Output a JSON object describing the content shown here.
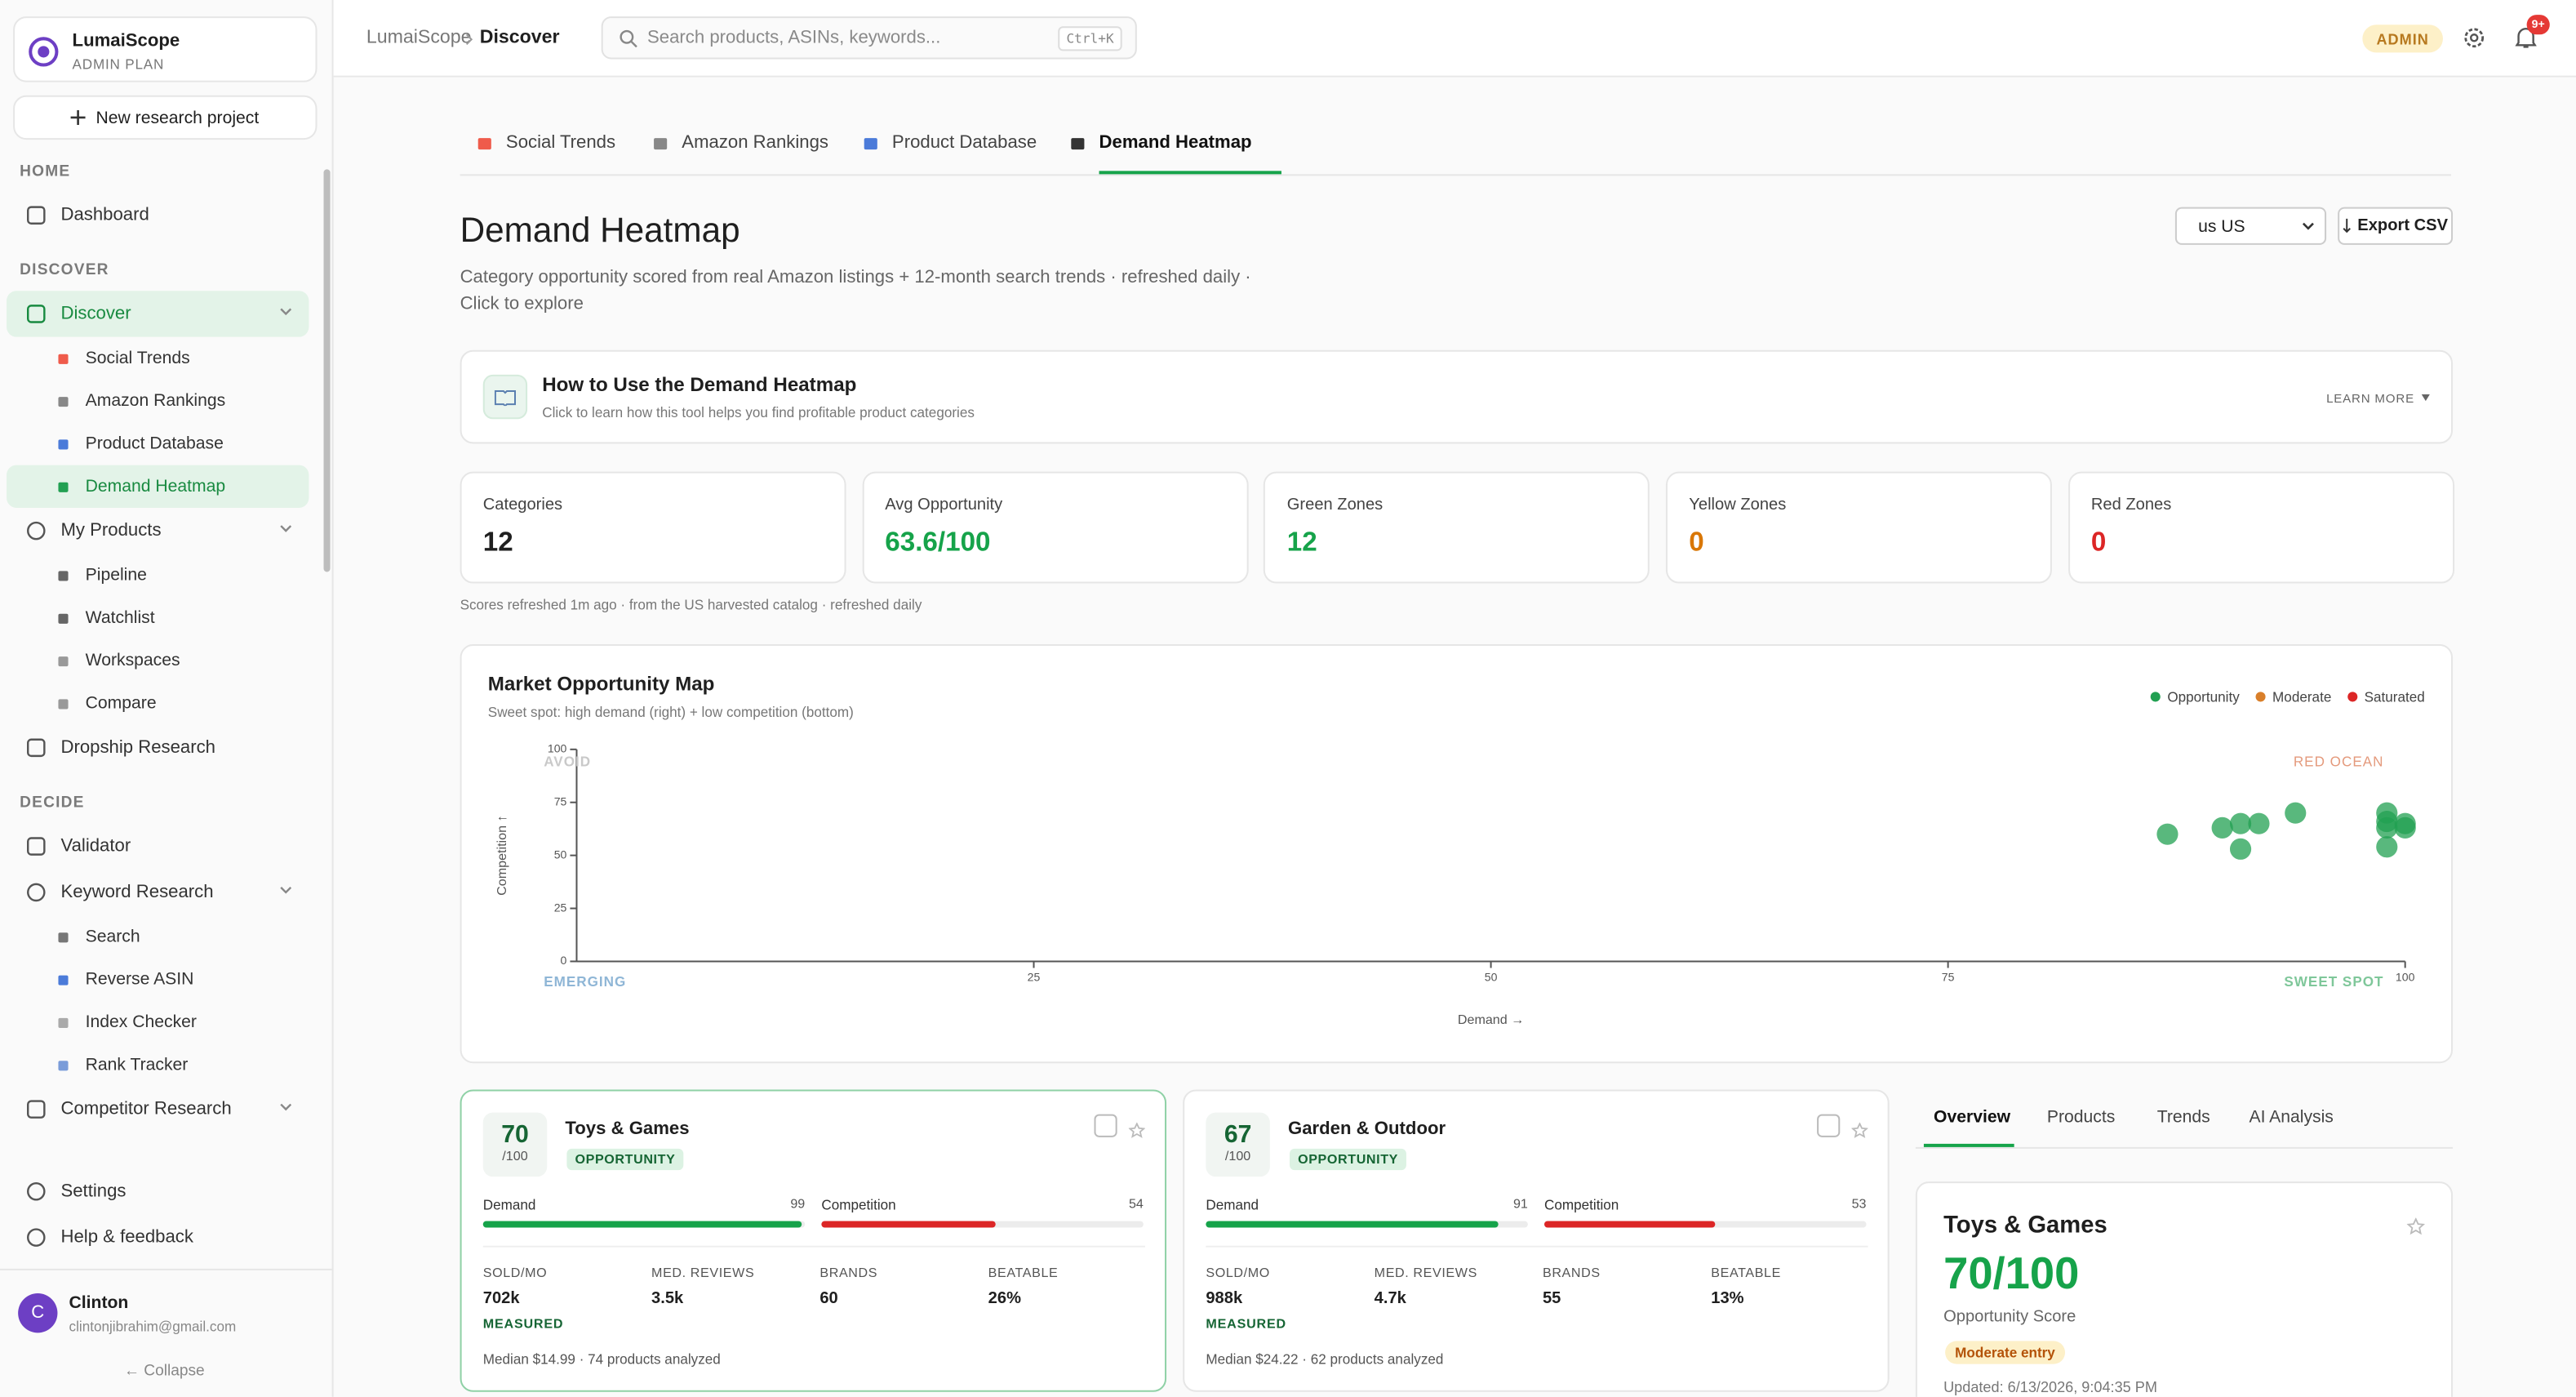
{
  "sidebar": {
    "brand": "LumaiScope",
    "plan": "ADMIN PLAN",
    "new_project": "New research project",
    "sections": [
      {
        "heading": "HOME",
        "items": [
          {
            "label": "Dashboard"
          }
        ]
      },
      {
        "heading": "DISCOVER",
        "items": [
          {
            "label": "Discover",
            "active": true,
            "children": [
              {
                "label": "Social Trends",
                "color": "#ef5b4b"
              },
              {
                "label": "Amazon Rankings",
                "color": "#888888"
              },
              {
                "label": "Product Database",
                "color": "#4b7bd9"
              },
              {
                "label": "Demand Heatmap",
                "color": "#22a052",
                "active": true
              }
            ]
          },
          {
            "label": "My Products",
            "children": [
              {
                "label": "Pipeline",
                "color": "#666666"
              },
              {
                "label": "Watchlist",
                "color": "#666666"
              },
              {
                "label": "Workspaces",
                "color": "#999999"
              },
              {
                "label": "Compare",
                "color": "#999999"
              }
            ]
          },
          {
            "label": "Dropship Research"
          }
        ]
      },
      {
        "heading": "DECIDE",
        "items": [
          {
            "label": "Validator"
          },
          {
            "label": "Keyword Research",
            "children": [
              {
                "label": "Search",
                "color": "#777777"
              },
              {
                "label": "Reverse ASIN",
                "color": "#4b7bd9"
              },
              {
                "label": "Index Checker",
                "color": "#aaaaaa"
              },
              {
                "label": "Rank Tracker",
                "color": "#7a9cd9"
              }
            ]
          },
          {
            "label": "Competitor Research",
            "children": []
          }
        ]
      }
    ],
    "footer": [
      "Settings",
      "Help & feedback"
    ],
    "user": {
      "initial": "C",
      "name": "Clinton",
      "email": "clintonjibrahim@gmail.com"
    },
    "collapse": "← Collapse"
  },
  "topbar": {
    "breadcrumb": [
      "LumaiScope",
      "Discover"
    ],
    "search_placeholder": "Search products, ASINs, keywords...",
    "shortcut": "Ctrl+K",
    "role": "ADMIN",
    "notifications": "9+"
  },
  "tabs": [
    {
      "label": "Social Trends",
      "color": "#ef5b4b"
    },
    {
      "label": "Amazon Rankings",
      "color": "#888888"
    },
    {
      "label": "Product Database",
      "color": "#4b7bd9"
    },
    {
      "label": "Demand Heatmap",
      "color": "#333333",
      "active": true
    }
  ],
  "page": {
    "title": "Demand Heatmap",
    "subtitle": "Category opportunity scored from real Amazon listings + 12-month search trends · refreshed daily · Click to explore",
    "region": "us US",
    "export": "Export CSV"
  },
  "guide": {
    "title": "How to Use the Demand Heatmap",
    "text": "Click to learn how this tool helps you find profitable product categories",
    "action": "LEARN MORE"
  },
  "stats": [
    {
      "label": "Categories",
      "value": "12",
      "color": "#1f1f1f"
    },
    {
      "label": "Avg Opportunity",
      "value": "63.6/100",
      "color": "#16a34a"
    },
    {
      "label": "Green Zones",
      "value": "12",
      "color": "#16a34a"
    },
    {
      "label": "Yellow Zones",
      "value": "0",
      "color": "#d97706"
    },
    {
      "label": "Red Zones",
      "value": "0",
      "color": "#dc2626"
    }
  ],
  "refresh_note": "Scores refreshed 1m ago · from the US harvested catalog · refreshed daily",
  "chart_data": {
    "type": "scatter",
    "title": "Market Opportunity Map",
    "subtitle": "Sweet spot: high demand (right) + low competition (bottom)",
    "x_label": "Demand →",
    "y_label": "Competition ↑",
    "quadrants": {
      "top_left": "AVOID",
      "top_right": "RED OCEAN",
      "bottom_left": "EMERGING",
      "bottom_right": "SWEET SPOT"
    },
    "legend_position": "top-right",
    "series": [
      {
        "name": "Opportunity",
        "color": "#22a052",
        "x": [
          87,
          90,
          91,
          92,
          91,
          94,
          99,
          99,
          100,
          100,
          99,
          99
        ],
        "values": [
          60,
          63,
          65,
          65,
          53,
          70,
          70,
          63,
          65,
          63,
          54,
          66
        ]
      },
      {
        "name": "Moderate",
        "color": "#d97f2a",
        "x": [],
        "values": []
      },
      {
        "name": "Saturated",
        "color": "#dc2626",
        "x": [],
        "values": []
      }
    ],
    "xlim": [
      0,
      100
    ],
    "ylim": [
      0,
      100
    ],
    "xticks": [
      25,
      50,
      75,
      100
    ],
    "yticks": [
      0,
      25,
      50,
      75,
      100
    ]
  },
  "cards": [
    {
      "score": 70,
      "score_max": "/100",
      "name": "Toys & Games",
      "badge": "OPPORTUNITY",
      "demand_label": "Demand",
      "demand": 99,
      "competition_label": "Competition",
      "competition": 54,
      "metrics": [
        {
          "label": "SOLD/MO",
          "value": "702k"
        },
        {
          "label": "MED. REVIEWS",
          "value": "3.5k"
        },
        {
          "label": "BRANDS",
          "value": "60"
        },
        {
          "label": "BEATABLE",
          "value": "26%"
        }
      ],
      "measured": "MEASURED",
      "footer": "Median $14.99 · 74 products analyzed",
      "selected": true
    },
    {
      "score": 67,
      "score_max": "/100",
      "name": "Garden & Outdoor",
      "badge": "OPPORTUNITY",
      "demand_label": "Demand",
      "demand": 91,
      "competition_label": "Competition",
      "competition": 53,
      "metrics": [
        {
          "label": "SOLD/MO",
          "value": "988k"
        },
        {
          "label": "MED. REVIEWS",
          "value": "4.7k"
        },
        {
          "label": "BRANDS",
          "value": "55"
        },
        {
          "label": "BEATABLE",
          "value": "13%"
        }
      ],
      "measured": "MEASURED",
      "footer": "Median $24.22 · 62 products analyzed"
    }
  ],
  "detail": {
    "tabs": [
      "Overview",
      "Products",
      "Trends",
      "AI Analysis"
    ],
    "title": "Toys & Games",
    "score": "70/100",
    "score_label": "Opportunity Score",
    "badge": "Moderate entry",
    "updated": "Updated: 6/13/2026, 9:04:35 PM"
  }
}
